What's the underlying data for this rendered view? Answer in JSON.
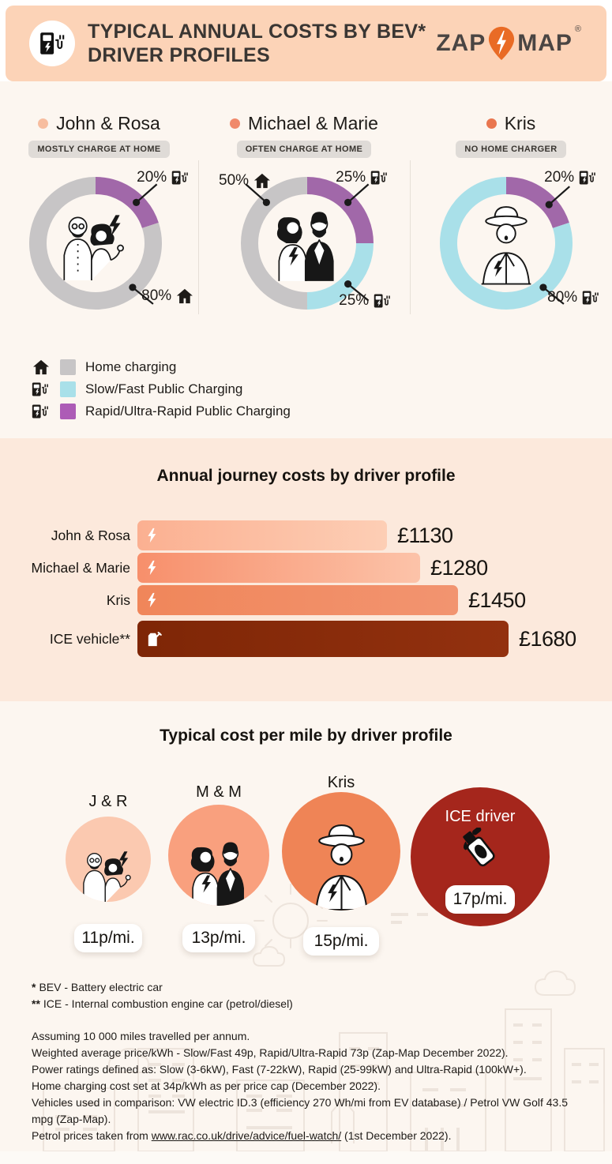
{
  "header": {
    "title_line1": "TYPICAL ANNUAL COSTS BY BEV*",
    "title_line2": "DRIVER PROFILES",
    "logo_zap": "ZAP",
    "logo_map": "MAP",
    "logo_reg": "®",
    "icons": {
      "header_badge": "ev-charger",
      "logo_pin": "map-pin-bolt"
    }
  },
  "profiles": [
    {
      "name": "John & Rosa",
      "badge": "MOSTLY CHARGE AT HOME",
      "dot_color": "#f7bd9f"
    },
    {
      "name": "Michael & Marie",
      "badge": "OFTEN CHARGE AT HOME",
      "dot_color": "#f0896b"
    },
    {
      "name": "Kris",
      "badge": "NO HOME CHARGER",
      "dot_color": "#e9764f"
    }
  ],
  "legend": {
    "items": [
      {
        "icon": "home",
        "color": "#c7c5c6",
        "label": "Home charging"
      },
      {
        "icon": "charger",
        "color": "#a9e0e9",
        "label": "Slow/Fast Public Charging"
      },
      {
        "icon": "charger",
        "color": "#ad5cb6",
        "label": "Rapid/Ultra-Rapid Public Charging"
      }
    ]
  },
  "chart_data": [
    {
      "type": "pie",
      "title": "John & Rosa charging mix",
      "segments": [
        {
          "label": "Rapid/Ultra-Rapid Public Charging",
          "value_pct": 20,
          "color": "#a168a9",
          "icon": "charger"
        },
        {
          "label": "Home charging",
          "value_pct": 80,
          "color": "#c7c5c6",
          "icon": "home"
        }
      ]
    },
    {
      "type": "pie",
      "title": "Michael & Marie charging mix",
      "segments": [
        {
          "label": "Rapid/Ultra-Rapid Public Charging",
          "value_pct": 25,
          "color": "#a168a9",
          "icon": "charger"
        },
        {
          "label": "Slow/Fast Public Charging",
          "value_pct": 25,
          "color": "#a9e0e9",
          "icon": "charger"
        },
        {
          "label": "Home charging",
          "value_pct": 50,
          "color": "#c7c5c6",
          "icon": "home"
        }
      ]
    },
    {
      "type": "pie",
      "title": "Kris charging mix",
      "segments": [
        {
          "label": "Rapid/Ultra-Rapid Public Charging",
          "value_pct": 20,
          "color": "#a168a9",
          "icon": "charger"
        },
        {
          "label": "Slow/Fast Public Charging",
          "value_pct": 80,
          "color": "#a9e0e9",
          "icon": "charger"
        }
      ]
    },
    {
      "type": "bar",
      "title": "Annual journey costs by driver profile",
      "categories": [
        "John & Rosa",
        "Michael & Marie",
        "Kris",
        "ICE vehicle**"
      ],
      "values": [
        1130,
        1280,
        1450,
        1680
      ],
      "unit": "£",
      "value_labels": [
        "£1130",
        "£1280",
        "£1450",
        "£1680"
      ],
      "bar_styles": [
        {
          "start": "#fbb091",
          "end": "#fdceb5",
          "icon": "bolt"
        },
        {
          "start": "#f78f6b",
          "end": "#fcc3a9",
          "icon": "bolt"
        },
        {
          "start": "#f0865a",
          "end": "#f29470",
          "icon": "bolt"
        },
        {
          "start": "#7e2606",
          "end": "#93310f",
          "icon": "fuel-can"
        }
      ]
    },
    {
      "type": "bar",
      "title": "Typical cost per mile by driver profile",
      "categories": [
        "J & R",
        "M & M",
        "Kris",
        "ICE driver"
      ],
      "values": [
        11,
        13,
        15,
        17
      ],
      "unit": "p/mi.",
      "value_labels": [
        "11p/mi.",
        "13p/mi.",
        "15p/mi.",
        "17p/mi."
      ],
      "circle_colors": [
        "#fbc9b0",
        "#f9a07e",
        "#ef8456",
        "#a5261c"
      ]
    }
  ],
  "footnotes": {
    "fn1_star": "*",
    "fn1_text": "BEV - Battery electric car",
    "fn2_star": "**",
    "fn2_text": "ICE - Internal combustion engine car (petrol/diesel)",
    "lines": [
      "Assuming 10 000 miles travelled per annum.",
      "Weighted average price/kWh - Slow/Fast 49p, Rapid/Ultra-Rapid 73p (Zap-Map December 2022).",
      "Power ratings defined as: Slow (3-6kW), Fast (7-22kW), Rapid (25-99kW) and Ultra-Rapid (100kW+).",
      "Home charging cost set at 34p/kWh as per price cap (December 2022).",
      "Vehicles used in comparison: VW electric ID.3 (efficiency 270 Wh/mi from EV database) / Petrol VW Golf 43.5 mpg (Zap-Map)."
    ],
    "petrol_pre": "Petrol prices taken from ",
    "petrol_link": "www.rac.co.uk/drive/advice/fuel-watch/",
    "petrol_post": "  (1st December 2022)."
  }
}
